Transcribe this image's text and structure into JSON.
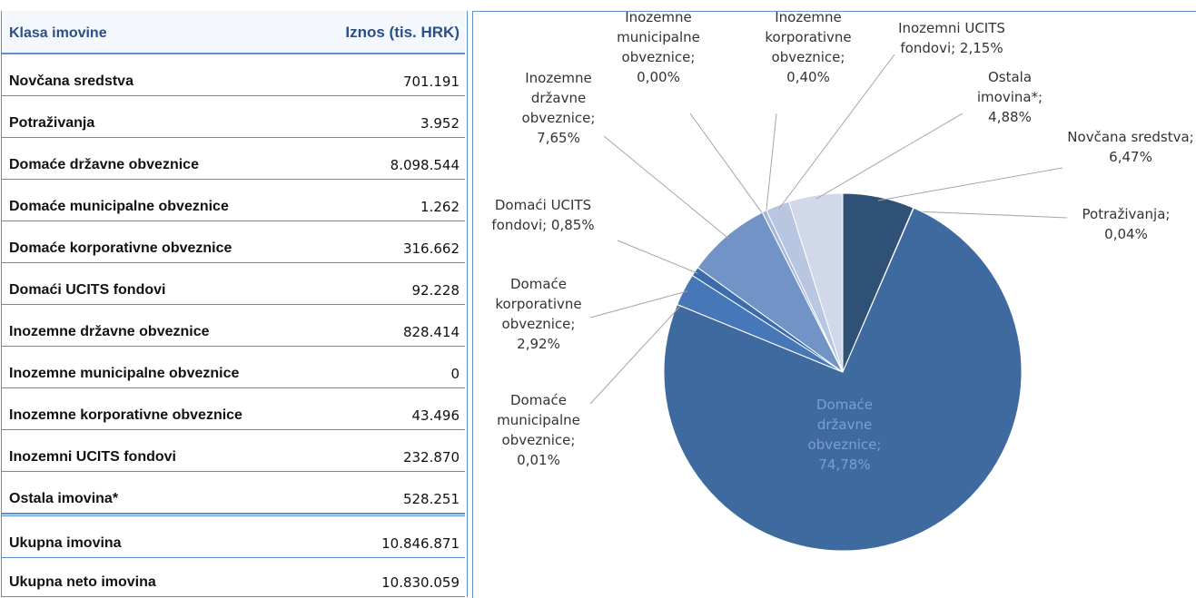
{
  "table": {
    "header": [
      "Klasa imovine",
      "Iznos (tis. HRK)"
    ],
    "rows": [
      [
        "Novčana sredstva",
        "701.191"
      ],
      [
        "Potraživanja",
        "3.952"
      ],
      [
        "Domaće državne obveznice",
        "8.098.544"
      ],
      [
        "Domaće municipalne obveznice",
        "1.262"
      ],
      [
        "Domaće korporativne obveznice",
        "316.662"
      ],
      [
        "Domaći UCITS fondovi",
        "92.228"
      ],
      [
        "Inozemne državne obveznice",
        "828.414"
      ],
      [
        "Inozemne municipalne obveznice",
        "0"
      ],
      [
        "Inozemne korporativne obveznice",
        "43.496"
      ],
      [
        "Inozemni UCITS fondovi",
        "232.870"
      ],
      [
        "Ostala imovina*",
        "528.251"
      ]
    ],
    "totals": [
      [
        "Ukupna imovina",
        "10.846.871"
      ],
      [
        "Ukupna neto imovina",
        "10.830.059"
      ]
    ]
  },
  "chart_data": {
    "type": "pie",
    "labels": [
      "Novčana sredstva; 6,47%",
      "Potraživanja; 0,04%",
      "Domaće državne obveznice; 74,78%",
      "Domaće municipalne obveznice; 0,01%",
      "Domaće korporativne obveznice; 2,92%",
      "Domaći UCITS fondovi; 0,85%",
      "Inozemne državne obveznice; 7,65%",
      "Inozemne municipalne obveznice; 0,00%",
      "Inozemne korporativne obveznice; 0,40%",
      "Inozemni UCITS fondovi; 2,15%",
      "Ostala imovina*; 4,88%"
    ],
    "values": [
      6.47,
      0.04,
      74.78,
      0.01,
      2.92,
      0.85,
      7.65,
      0.0,
      0.4,
      2.15,
      4.88
    ],
    "colors": [
      "#2f5077",
      "#2f5077",
      "#3e6a9f",
      "#3566a5",
      "#4677b8",
      "#3d6cad",
      "#7293c6",
      "#8aa3cf",
      "#a7b8db",
      "#b9c6e2",
      "#d0d8ea"
    ]
  }
}
